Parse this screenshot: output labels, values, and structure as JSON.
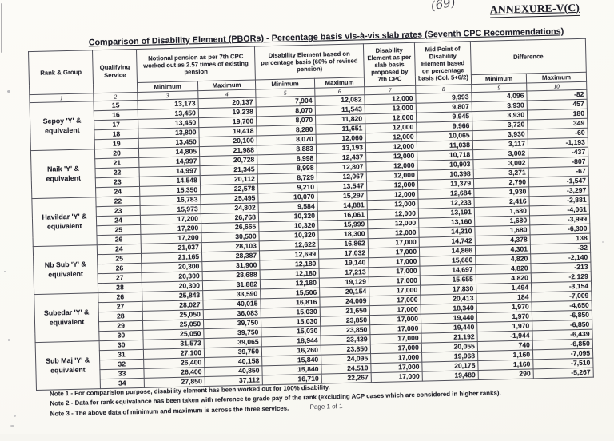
{
  "page": {
    "annexure": "ANNEXURE-V(C)",
    "handwritten_mark": "(69)",
    "title": "Comparison of Disability Element (PBORs) - Percentage basis vis-à-vis slab rates (Seventh CPC Recommendations)",
    "notes": {
      "note1": "Note 1 - For comparision purpose, disability element has been worked out for 100% disability.",
      "note2": "Note 2 - Data for rank equivalance has been taken with reference to grade pay of the rank (excluding ACP cases which are considered in higher ranks).",
      "note3": "Note 3 - The above data of minimum and maximum is across the three services."
    },
    "page_number": "Page 1 of 1"
  },
  "table": {
    "headers": {
      "rank_group": "Rank & Group",
      "qualifying_service": "Qualifying Service",
      "notional_pension": "Notional pension as per 7th CPC worked out as 2.57 times of existing pension",
      "disability_percentage": "Disability Element based on percentage basis (60% of revised pension)",
      "disability_slab": "Disability Element as per slab basis proposed by 7th CPC",
      "mid_point": "Mid Point of Disability Element based on percentage basis (Col. 5+6/2)",
      "difference": "Difference",
      "minimum": "Minimum",
      "maximum": "Maximum",
      "column_numbers": [
        "1",
        "2",
        "3",
        "4",
        "5",
        "6",
        "7",
        "8",
        "9",
        "10"
      ]
    },
    "groups": [
      {
        "rank": "Sepoy 'Y' & equivalent",
        "rows": [
          [
            "15",
            "13,173",
            "20,137",
            "7,904",
            "12,082",
            "12,000",
            "9,993",
            "4,096",
            "-82"
          ],
          [
            "16",
            "13,450",
            "19,238",
            "8,070",
            "11,543",
            "12,000",
            "9,807",
            "3,930",
            "457"
          ],
          [
            "17",
            "13,450",
            "19,700",
            "8,070",
            "11,820",
            "12,000",
            "9,945",
            "3,930",
            "180"
          ],
          [
            "18",
            "13,800",
            "19,418",
            "8,280",
            "11,651",
            "12,000",
            "9,966",
            "3,720",
            "349"
          ],
          [
            "19",
            "13,450",
            "20,100",
            "8,070",
            "12,060",
            "12,000",
            "10,065",
            "3,930",
            "-60"
          ]
        ]
      },
      {
        "rank": "Naik 'Y' & equivalent",
        "rows": [
          [
            "20",
            "14,805",
            "21,988",
            "8,883",
            "13,193",
            "12,000",
            "11,038",
            "3,117",
            "-1,193"
          ],
          [
            "21",
            "14,997",
            "20,728",
            "8,998",
            "12,437",
            "12,000",
            "10,718",
            "3,002",
            "-437"
          ],
          [
            "22",
            "14,997",
            "21,345",
            "8,998",
            "12,807",
            "12,000",
            "10,903",
            "3,002",
            "-807"
          ],
          [
            "23",
            "14,548",
            "20,112",
            "8,729",
            "12,067",
            "12,000",
            "10,398",
            "3,271",
            "-67"
          ],
          [
            "24",
            "15,350",
            "22,578",
            "9,210",
            "13,547",
            "12,000",
            "11,379",
            "2,790",
            "-1,547"
          ]
        ]
      },
      {
        "rank": "Havildar 'Y' & equivalent",
        "rows": [
          [
            "22",
            "16,783",
            "25,495",
            "10,070",
            "15,297",
            "12,000",
            "12,684",
            "1,930",
            "-3,297"
          ],
          [
            "23",
            "15,973",
            "24,802",
            "9,584",
            "14,881",
            "12,000",
            "12,233",
            "2,416",
            "-2,881"
          ],
          [
            "24",
            "17,200",
            "26,768",
            "10,320",
            "16,061",
            "12,000",
            "13,191",
            "1,680",
            "-4,061"
          ],
          [
            "25",
            "17,200",
            "26,665",
            "10,320",
            "15,999",
            "12,000",
            "13,160",
            "1,680",
            "-3,999"
          ],
          [
            "26",
            "17,200",
            "30,500",
            "10,320",
            "18,300",
            "12,000",
            "14,310",
            "1,680",
            "-6,300"
          ]
        ]
      },
      {
        "rank": "Nb Sub 'Y' & equivalent",
        "rows": [
          [
            "24",
            "21,037",
            "28,103",
            "12,622",
            "16,862",
            "17,000",
            "14,742",
            "4,378",
            "138"
          ],
          [
            "25",
            "21,165",
            "28,387",
            "12,699",
            "17,032",
            "17,000",
            "14,866",
            "4,301",
            "-32"
          ],
          [
            "26",
            "20,300",
            "31,900",
            "12,180",
            "19,140",
            "17,000",
            "15,660",
            "4,820",
            "-2,140"
          ],
          [
            "27",
            "20,300",
            "28,688",
            "12,180",
            "17,213",
            "17,000",
            "14,697",
            "4,820",
            "-213"
          ],
          [
            "28",
            "20,300",
            "31,882",
            "12,180",
            "19,129",
            "17,000",
            "15,655",
            "4,820",
            "-2,129"
          ]
        ]
      },
      {
        "rank": "Subedar 'Y' & equivalent",
        "rows": [
          [
            "26",
            "25,843",
            "33,590",
            "15,506",
            "20,154",
            "17,000",
            "17,830",
            "1,494",
            "-3,154"
          ],
          [
            "27",
            "28,027",
            "40,015",
            "16,816",
            "24,009",
            "17,000",
            "20,413",
            "184",
            "-7,009"
          ],
          [
            "28",
            "25,050",
            "36,083",
            "15,030",
            "21,650",
            "17,000",
            "18,340",
            "1,970",
            "-4,650"
          ],
          [
            "29",
            "25,050",
            "39,750",
            "15,030",
            "23,850",
            "17,000",
            "19,440",
            "1,970",
            "-6,850"
          ],
          [
            "30",
            "25,050",
            "39,750",
            "15,030",
            "23,850",
            "17,000",
            "19,440",
            "1,970",
            "-6,850"
          ]
        ]
      },
      {
        "rank": "Sub Maj 'Y' & equivalent",
        "rows": [
          [
            "30",
            "31,573",
            "39,065",
            "18,944",
            "23,439",
            "17,000",
            "21,192",
            "-1,944",
            "-6,439"
          ],
          [
            "31",
            "27,100",
            "39,750",
            "16,260",
            "23,850",
            "17,000",
            "20,055",
            "740",
            "-6,850"
          ],
          [
            "32",
            "26,400",
            "40,158",
            "15,840",
            "24,095",
            "17,000",
            "19,968",
            "1,160",
            "-7,095"
          ],
          [
            "33",
            "26,400",
            "40,850",
            "15,840",
            "24,510",
            "17,000",
            "20,175",
            "1,160",
            "-7,510"
          ],
          [
            "34",
            "27,850",
            "37,112",
            "16,710",
            "22,267",
            "17,000",
            "19,489",
            "290",
            "-5,267"
          ]
        ]
      }
    ]
  }
}
